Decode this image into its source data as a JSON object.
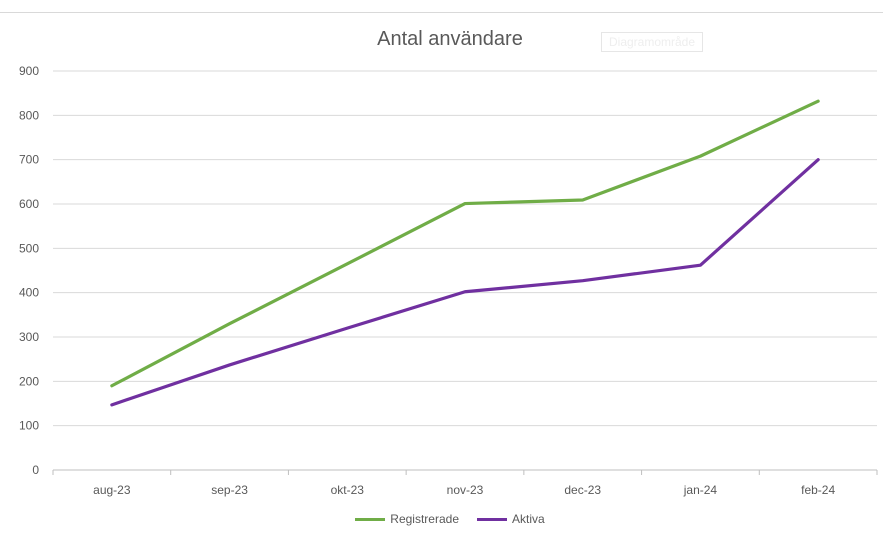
{
  "chart_data": {
    "type": "line",
    "title": "Antal användare",
    "categories": [
      "aug-23",
      "sep-23",
      "okt-23",
      "nov-23",
      "dec-23",
      "jan-24",
      "feb-24"
    ],
    "series": [
      {
        "name": "Registrerade",
        "color": "#70ad47",
        "values": [
          190,
          330,
          465,
          601,
          609,
          708,
          832
        ]
      },
      {
        "name": "Aktiva",
        "color": "#7030a0",
        "values": [
          147,
          237,
          320,
          402,
          427,
          462,
          700
        ]
      }
    ],
    "ylim": [
      0,
      900
    ],
    "yticks": [
      "0",
      "100",
      "200",
      "300",
      "400",
      "500",
      "600",
      "700",
      "800",
      "900"
    ],
    "grid": true,
    "legend": "bottom"
  },
  "tooltip": "Diagramområde"
}
